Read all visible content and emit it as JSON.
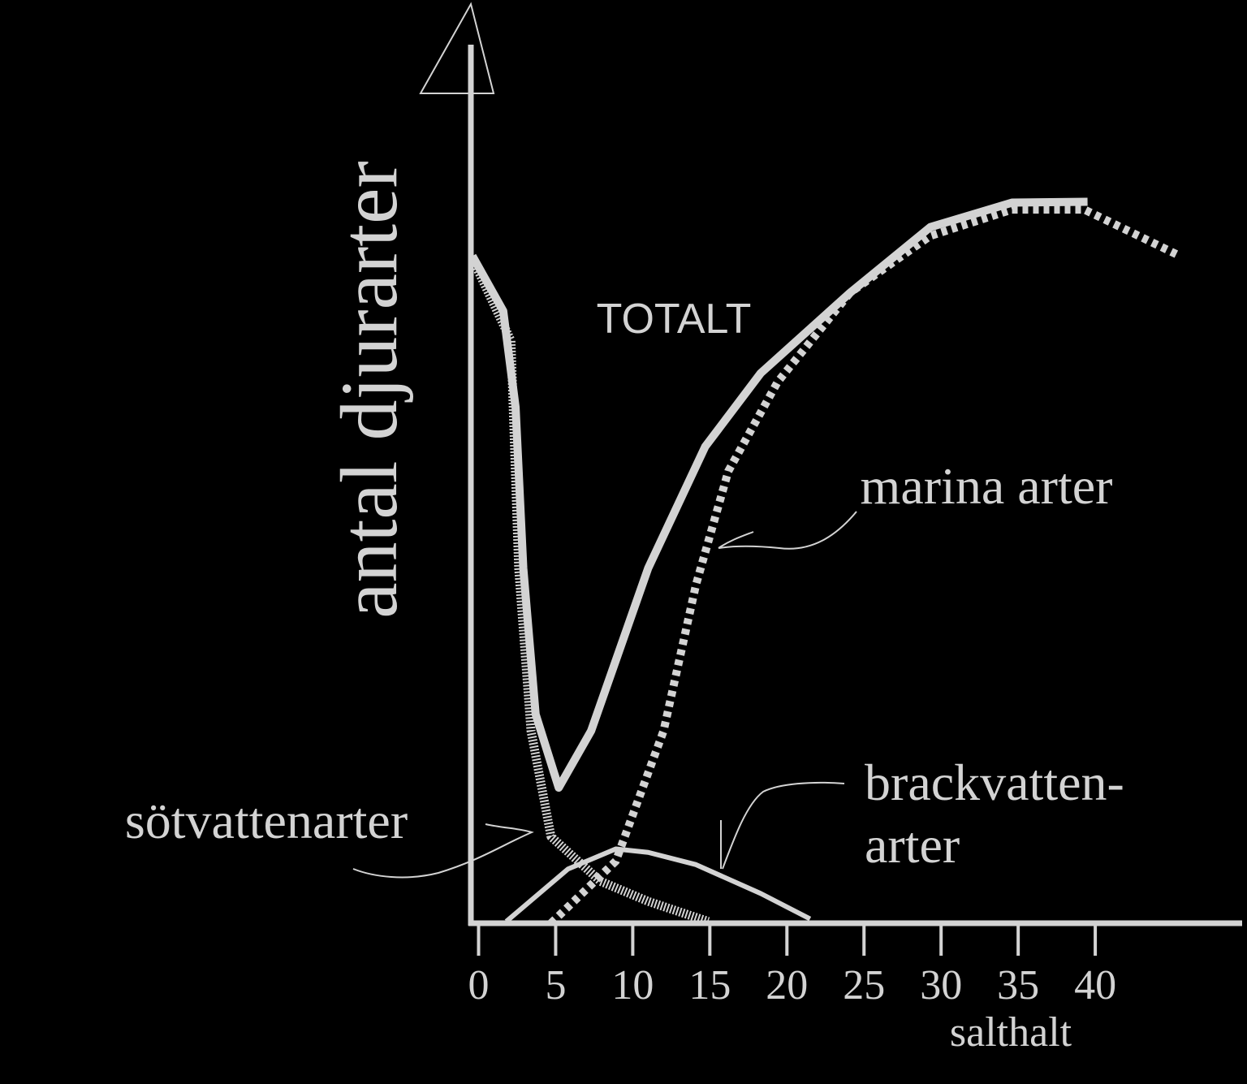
{
  "chart_data": {
    "type": "line",
    "x_label": "salthalt",
    "y_label": "antal djurarter",
    "xlim": [
      -0.5,
      49
    ],
    "xticks": [
      0,
      5,
      10,
      15,
      20,
      25,
      30,
      35,
      40
    ],
    "ylim": [
      0,
      100
    ],
    "series": [
      {
        "name": "TOTALT",
        "color": "#d3d3d3",
        "line_style": "solid",
        "x": [
          -0.4,
          1.6,
          2.4,
          2.9,
          3.7,
          5.2,
          7.3,
          11,
          14.7,
          18.3,
          24.1,
          29.3,
          34.6,
          39.5
        ],
        "values": [
          76.3,
          70,
          59,
          40.6,
          23.9,
          15.5,
          22,
          40.6,
          54.5,
          62.9,
          72.1,
          79.6,
          82.4,
          82.5
        ]
      },
      {
        "name": "marina arter",
        "color": "#d3d3d3",
        "line_style": "dotted",
        "x": [
          4.7,
          8.9,
          12,
          14.1,
          16.2,
          19.4,
          24.1,
          29.3,
          34.6,
          39.3,
          45.5
        ],
        "values": [
          0,
          7.1,
          22,
          38.7,
          51.7,
          61.9,
          72.1,
          78.6,
          81.6,
          81.6,
          76.3
        ]
      },
      {
        "name": "sötvattenarter",
        "color": "#d3d3d3",
        "line_style": "hatched",
        "x": [
          -0.4,
          2.1,
          2.6,
          3.4,
          4.7,
          7.9,
          11,
          14.9
        ],
        "values": [
          76,
          66.6,
          40.6,
          22,
          9.9,
          4.8,
          2.5,
          0.2
        ]
      },
      {
        "name": "brackvatten-\narter",
        "color": "#d3d3d3",
        "line_style": "thin",
        "x": [
          1.8,
          5.8,
          8.9,
          11,
          14.1,
          18.3,
          21.5
        ],
        "values": [
          0.2,
          6.2,
          8.5,
          8.1,
          6.7,
          3.4,
          0.5
        ]
      }
    ]
  }
}
